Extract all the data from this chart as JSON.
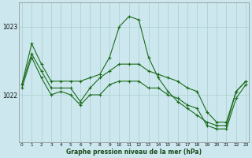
{
  "title": "Graphe pression niveau de la mer (hPa)",
  "bg_color": "#cce8ee",
  "plot_bg_color": "#cce8ee",
  "grid_color": "#aacccc",
  "line_color": "#1a6b1a",
  "yticks": [
    1022,
    1023
  ],
  "ylim": [
    1021.3,
    1023.35
  ],
  "xlim": [
    -0.3,
    23.3
  ],
  "xticks": [
    0,
    1,
    2,
    3,
    4,
    5,
    6,
    7,
    8,
    9,
    10,
    11,
    12,
    13,
    14,
    15,
    16,
    17,
    18,
    19,
    20,
    21,
    22,
    23
  ],
  "line1": [
    1022.15,
    1022.75,
    1022.45,
    1022.2,
    1022.2,
    1022.2,
    1022.2,
    1022.25,
    1022.3,
    1022.55,
    1023.0,
    1023.15,
    1023.1,
    1022.55,
    1022.25,
    1022.05,
    1021.9,
    1021.8,
    1021.7,
    1021.6,
    1021.55,
    1021.55,
    1022.05,
    1022.2
  ],
  "line2": [
    1022.15,
    1022.6,
    1022.35,
    1022.1,
    1022.1,
    1022.1,
    1021.9,
    1022.1,
    1022.25,
    1022.35,
    1022.45,
    1022.45,
    1022.45,
    1022.35,
    1022.3,
    1022.25,
    1022.2,
    1022.1,
    1022.05,
    1021.75,
    1021.6,
    1021.6,
    1022.05,
    1022.2
  ],
  "line3": [
    1022.1,
    1022.55,
    1022.25,
    1022.0,
    1022.05,
    1022.0,
    1021.85,
    1022.0,
    1022.0,
    1022.15,
    1022.2,
    1022.2,
    1022.2,
    1022.1,
    1022.1,
    1022.0,
    1021.95,
    1021.85,
    1021.8,
    1021.55,
    1021.5,
    1021.5,
    1021.95,
    1022.15
  ]
}
